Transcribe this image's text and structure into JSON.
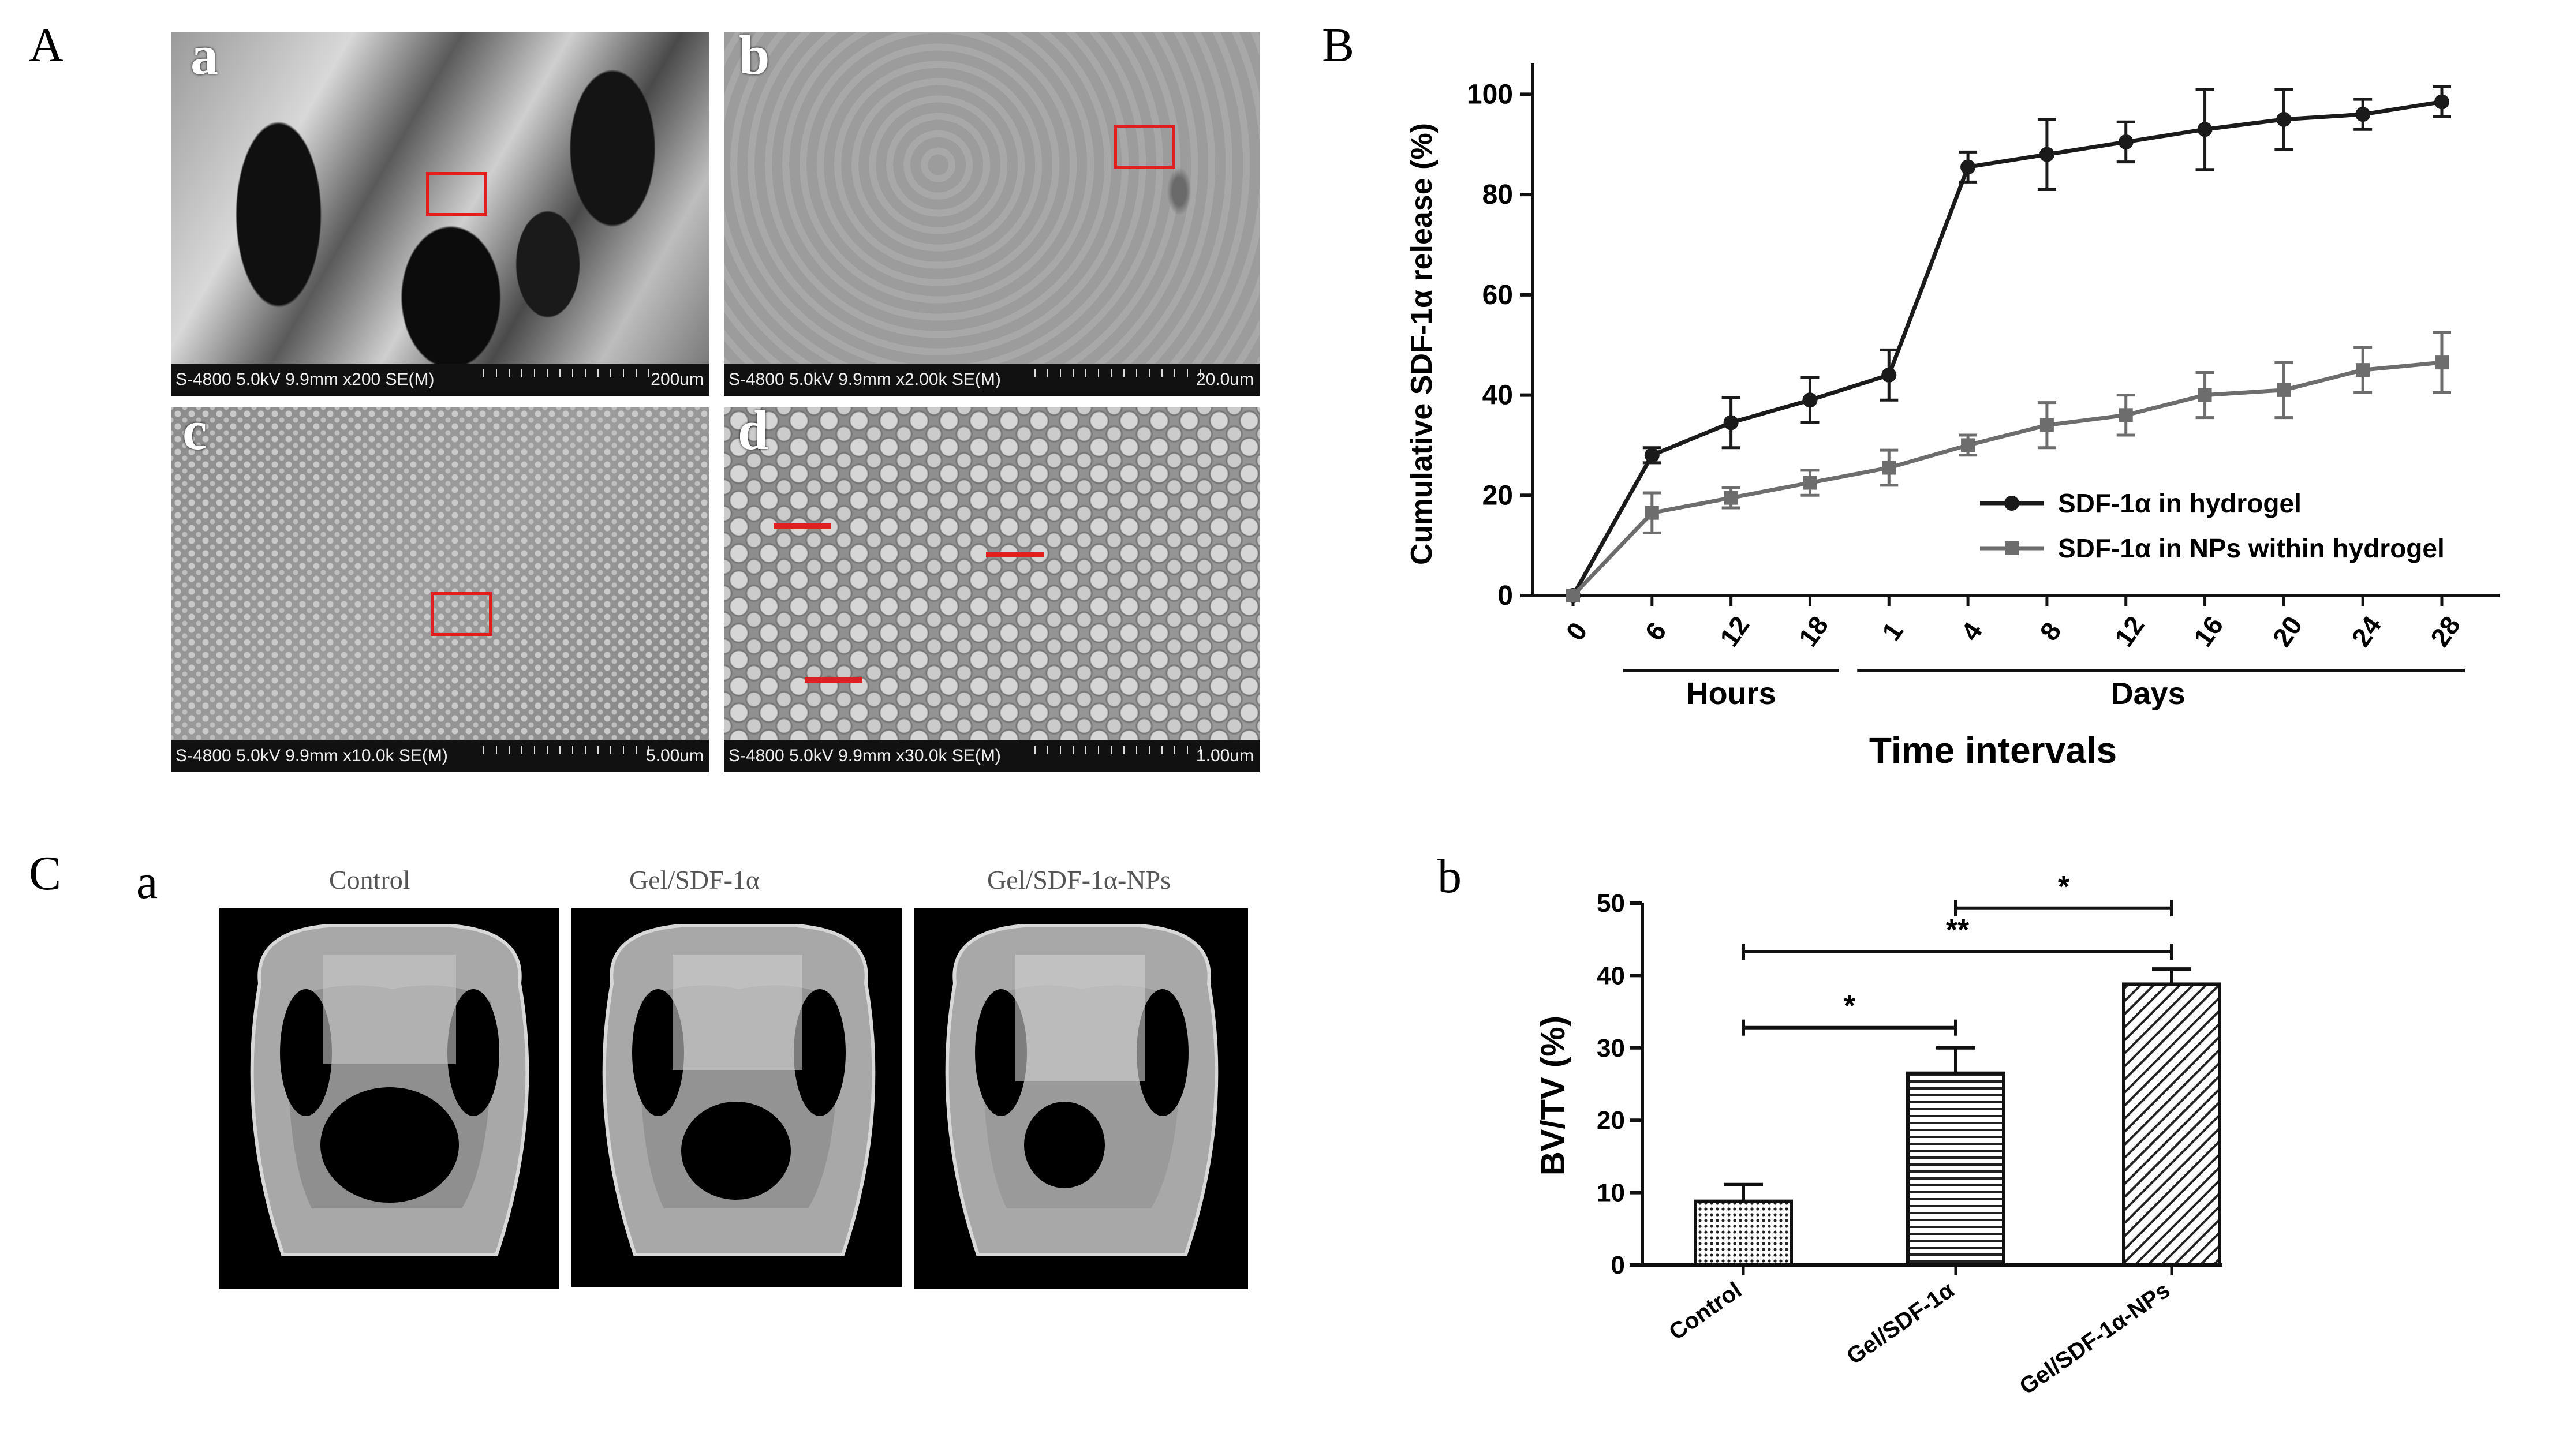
{
  "panels": {
    "A": "A",
    "B": "B",
    "C": "C",
    "sem_labels": [
      "a",
      "b",
      "c",
      "d"
    ],
    "sem_info": [
      "S-4800 5.0kV 9.9mm x200 SE(M)",
      "S-4800 5.0kV 9.9mm x2.00k SE(M)",
      "S-4800 5.0kV 9.9mm x10.0k SE(M)",
      "S-4800 5.0kV 9.9mm x30.0k SE(M)"
    ],
    "sem_scale": [
      "200um",
      "20.0um",
      "5.00um",
      "1.00um"
    ],
    "ca": "a",
    "cb": "b",
    "ct_titles": [
      "Control",
      "Gel/SDF-1α",
      "Gel/SDF-1α-NPs"
    ]
  },
  "chart_data": [
    {
      "type": "line",
      "ylabel": "Cumulative SDF-1α  release (%)",
      "xlabel": "Time intervals",
      "x": [
        "0",
        "6",
        "12",
        "18",
        "1",
        "4",
        "8",
        "12",
        "16",
        "20",
        "24",
        "28"
      ],
      "groups": [
        {
          "label": "Hours"
        },
        {
          "label": "Days"
        }
      ],
      "ylim": [
        0,
        105
      ],
      "yticks": [
        0,
        20,
        40,
        60,
        80,
        100
      ],
      "series": [
        {
          "name": "SDF-1α  in hydrogel",
          "color": "#1a1a1a",
          "marker": "circle",
          "values": [
            0,
            28,
            34.5,
            39,
            44,
            85.5,
            88,
            90.5,
            93,
            95,
            96,
            98.5
          ],
          "errors": [
            0,
            1.5,
            5,
            4.5,
            5,
            3,
            7,
            4,
            8,
            6,
            3,
            3
          ]
        },
        {
          "name": "SDF-1α  in NPs within hydrogel",
          "color": "#6d6d6d",
          "marker": "square",
          "values": [
            0,
            16.5,
            19.5,
            22.5,
            25.5,
            30,
            34,
            36,
            40,
            41,
            45,
            46.5
          ],
          "errors": [
            0,
            4,
            2,
            2.5,
            3.5,
            2,
            4.5,
            4,
            4.5,
            5.5,
            4.5,
            6
          ]
        }
      ],
      "legend": "lower-right"
    },
    {
      "type": "bar",
      "ylabel": "BV/TV (%)",
      "categories": [
        "Control",
        "Gel/SDF-1α",
        "Gel/SDF-1α-NPs"
      ],
      "values": [
        8.8,
        26.5,
        38.8
      ],
      "errors": [
        2.3,
        3.5,
        2.1
      ],
      "ylim": [
        0,
        50
      ],
      "yticks": [
        0,
        10,
        20,
        30,
        40,
        50
      ],
      "patterns": [
        "dots",
        "horizontal",
        "diagonal"
      ],
      "significance": [
        {
          "from": 0,
          "to": 1,
          "label": "*"
        },
        {
          "from": 0,
          "to": 2,
          "label": "**"
        },
        {
          "from": 1,
          "to": 2,
          "label": "*"
        }
      ]
    }
  ]
}
